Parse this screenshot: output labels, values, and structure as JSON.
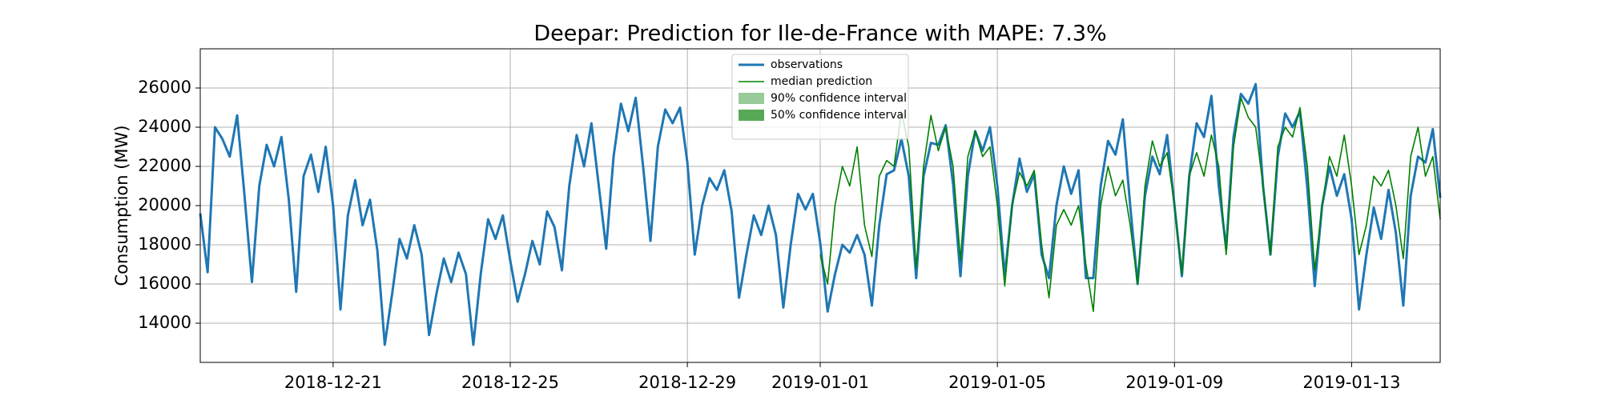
{
  "chart_data": {
    "type": "line",
    "title": "Deepar: Prediction for Ile-de-France with MAPE: 7.3%",
    "y_label": "Consumption (MW)",
    "categories": [
      null,
      null,
      null,
      null,
      null,
      null,
      null,
      null,
      null,
      null,
      null,
      null,
      null,
      null,
      null,
      null,
      null,
      null,
      "2018-12-21",
      null,
      null,
      null,
      null,
      null,
      null,
      null,
      null,
      null,
      null,
      null,
      null,
      null,
      null,
      null,
      null,
      null,
      null,
      null,
      null,
      null,
      null,
      null,
      "2018-12-25",
      null,
      null,
      null,
      null,
      null,
      null,
      null,
      null,
      null,
      null,
      null,
      null,
      null,
      null,
      null,
      null,
      null,
      null,
      null,
      null,
      null,
      null,
      null,
      "2018-12-29",
      null,
      null,
      null,
      null,
      null,
      null,
      null,
      null,
      null,
      null,
      null,
      null,
      null,
      null,
      null,
      null,
      null,
      "2019-01-01",
      null,
      null,
      null,
      null,
      null,
      null,
      null,
      null,
      null,
      null,
      null,
      null,
      null,
      null,
      null,
      null,
      null,
      null,
      null,
      null,
      null,
      null,
      null,
      "2019-01-05",
      null,
      null,
      null,
      null,
      null,
      null,
      null,
      null,
      null,
      null,
      null,
      null,
      null,
      null,
      null,
      null,
      null,
      null,
      null,
      null,
      null,
      null,
      null,
      "2019-01-09",
      null,
      null,
      null,
      null,
      null,
      null,
      null,
      null,
      null,
      null,
      null,
      null,
      null,
      null,
      null,
      null,
      null,
      null,
      null,
      null,
      null,
      null,
      null,
      "2019-01-13",
      null,
      null,
      null,
      null,
      null,
      null,
      null,
      null,
      null,
      null,
      null,
      null
    ],
    "series": [
      {
        "name": "observations",
        "color": "#1f77b4",
        "width": 3,
        "values": [
          19600,
          16600,
          24000,
          23400,
          22500,
          24600,
          20500,
          16100,
          21000,
          23100,
          22000,
          23500,
          20300,
          15600,
          21500,
          22600,
          20700,
          23000,
          20000,
          14700,
          19500,
          21300,
          19000,
          20300,
          17700,
          12900,
          15500,
          18300,
          17300,
          19000,
          17500,
          13400,
          15500,
          17300,
          16100,
          17600,
          16500,
          12900,
          16500,
          19300,
          18300,
          19500,
          17200,
          15100,
          16500,
          18200,
          17000,
          19700,
          18900,
          16700,
          21000,
          23600,
          22000,
          24200,
          21000,
          17800,
          22500,
          25200,
          23800,
          25500,
          22000,
          18200,
          23000,
          24900,
          24200,
          25000,
          22200,
          17500,
          20000,
          21400,
          20800,
          21800,
          19700,
          15300,
          17500,
          19500,
          18500,
          20000,
          18500,
          14800,
          18000,
          20600,
          19800,
          20600,
          18100,
          14600,
          16500,
          18000,
          17600,
          18500,
          17500,
          14900,
          19000,
          21600,
          21800,
          23400,
          21500,
          16300,
          21500,
          23200,
          23100,
          24100,
          21100,
          16400,
          21500,
          23800,
          22800,
          24000,
          21000,
          16400,
          20000,
          22400,
          20700,
          21600,
          17500,
          16300,
          20000,
          22000,
          20600,
          21800,
          16300,
          16300,
          21000,
          23300,
          22600,
          24400,
          20000,
          16000,
          20500,
          22500,
          21600,
          23600,
          20000,
          16400,
          21500,
          24200,
          23500,
          25600,
          21000,
          17800,
          23500,
          25700,
          25200,
          26200,
          21000,
          17500,
          22500,
          24700,
          24000,
          24800,
          20900,
          15900,
          20000,
          22000,
          20500,
          21600,
          19300,
          14700,
          17500,
          19900,
          18300,
          20800,
          18600,
          14900,
          20500,
          22500,
          22200,
          23900,
          20400
        ]
      },
      {
        "name": "median prediction",
        "color": "#008000",
        "width": 1.6,
        "values": [
          null,
          null,
          null,
          null,
          null,
          null,
          null,
          null,
          null,
          null,
          null,
          null,
          null,
          null,
          null,
          null,
          null,
          null,
          null,
          null,
          null,
          null,
          null,
          null,
          null,
          null,
          null,
          null,
          null,
          null,
          null,
          null,
          null,
          null,
          null,
          null,
          null,
          null,
          null,
          null,
          null,
          null,
          null,
          null,
          null,
          null,
          null,
          null,
          null,
          null,
          null,
          null,
          null,
          null,
          null,
          null,
          null,
          null,
          null,
          null,
          null,
          null,
          null,
          null,
          null,
          null,
          null,
          null,
          null,
          null,
          null,
          null,
          null,
          null,
          null,
          null,
          null,
          null,
          null,
          null,
          null,
          null,
          null,
          null,
          17500,
          16000,
          20000,
          22000,
          21000,
          23000,
          19000,
          17400,
          21500,
          22300,
          22000,
          24800,
          23000,
          16800,
          22000,
          24600,
          22800,
          24000,
          22000,
          17200,
          22500,
          23800,
          22500,
          23000,
          20000,
          15900,
          20000,
          21700,
          21000,
          21800,
          18000,
          15300,
          19000,
          19800,
          19000,
          20000,
          17000,
          14600,
          20000,
          22000,
          20500,
          21300,
          19000,
          16000,
          21000,
          23300,
          22000,
          22700,
          20000,
          16500,
          21500,
          22700,
          21500,
          23600,
          22000,
          17500,
          23000,
          25500,
          24500,
          24000,
          21000,
          17500,
          23000,
          24000,
          23500,
          25000,
          22000,
          16700,
          20000,
          22500,
          21500,
          23600,
          21000,
          17500,
          19000,
          21500,
          21000,
          21800,
          20000,
          17300,
          22500,
          24000,
          21500,
          22500,
          19300
        ]
      }
    ],
    "bands": [
      {
        "name": "90% confidence interval",
        "color": "#98cb98"
      },
      {
        "name": "50% confidence interval",
        "color": "#57a957"
      }
    ],
    "ylim": [
      12000,
      28000
    ],
    "yticks": [
      14000,
      16000,
      18000,
      20000,
      22000,
      24000,
      26000
    ],
    "grid": true,
    "legend": "upper center"
  }
}
